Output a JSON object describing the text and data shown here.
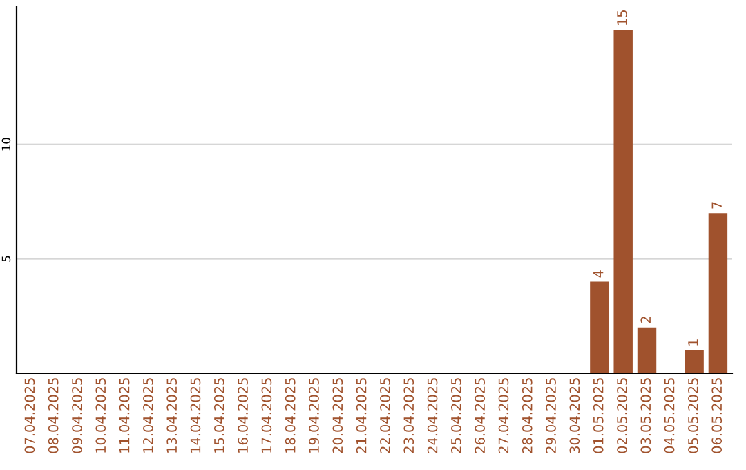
{
  "chart_data": {
    "type": "bar",
    "categories": [
      "07.04.2025",
      "08.04.2025",
      "09.04.2025",
      "10.04.2025",
      "11.04.2025",
      "12.04.2025",
      "13.04.2025",
      "14.04.2025",
      "15.04.2025",
      "16.04.2025",
      "17.04.2025",
      "18.04.2025",
      "19.04.2025",
      "20.04.2025",
      "21.04.2025",
      "22.04.2025",
      "23.04.2025",
      "24.04.2025",
      "25.04.2025",
      "26.04.2025",
      "27.04.2025",
      "28.04.2025",
      "29.04.2025",
      "30.04.2025",
      "01.05.2025",
      "02.05.2025",
      "03.05.2025",
      "04.05.2025",
      "05.05.2025",
      "06.05.2025"
    ],
    "values": [
      0,
      0,
      0,
      0,
      0,
      0,
      0,
      0,
      0,
      0,
      0,
      0,
      0,
      0,
      0,
      0,
      0,
      0,
      0,
      0,
      0,
      0,
      0,
      0,
      4,
      15,
      2,
      0,
      1,
      7
    ],
    "value_labels": [
      null,
      null,
      null,
      null,
      null,
      null,
      null,
      null,
      null,
      null,
      null,
      null,
      null,
      null,
      null,
      null,
      null,
      null,
      null,
      null,
      null,
      null,
      null,
      null,
      "4",
      "15",
      "2",
      null,
      "1",
      "7"
    ],
    "color": "#a0522d",
    "ylim": [
      0,
      16
    ],
    "yticks": [
      5,
      10
    ],
    "grid": "y"
  }
}
